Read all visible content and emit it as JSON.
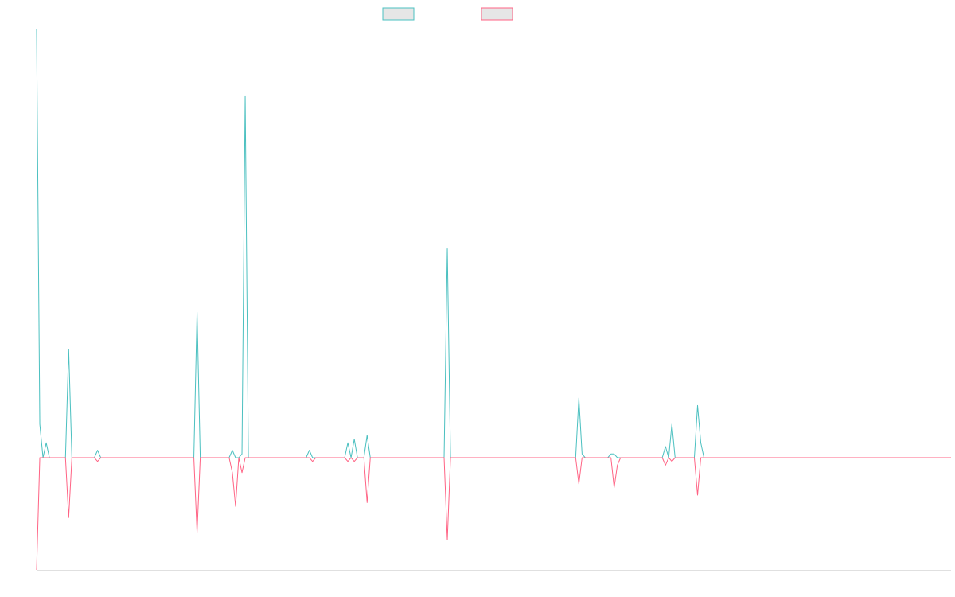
{
  "chart_data": {
    "type": "line",
    "title": "",
    "xlabel": "",
    "ylabel": "",
    "grid": false,
    "legend": {
      "position": "top-center",
      "entries": [
        {
          "color": "#4bc0c0"
        },
        {
          "color": "#ff6384"
        }
      ]
    },
    "ylim": [
      -0.3,
      1.15
    ],
    "x_count": 286,
    "series": [
      {
        "color": "#4bc0c0",
        "fill": "#e6e6e6",
        "points": [
          [
            0,
            1.15
          ],
          [
            1,
            0.09
          ],
          [
            2,
            0.0
          ],
          [
            3,
            0.04
          ],
          [
            4,
            0.0
          ],
          [
            5,
            0.0
          ],
          [
            9,
            0.0
          ],
          [
            10,
            0.29
          ],
          [
            11,
            0.0
          ],
          [
            18,
            0.0
          ],
          [
            19,
            0.02
          ],
          [
            20,
            0.0
          ],
          [
            49,
            0.0
          ],
          [
            50,
            0.39
          ],
          [
            51,
            0.0
          ],
          [
            60,
            0.0
          ],
          [
            61,
            0.02
          ],
          [
            62,
            0.0
          ],
          [
            63,
            0.0
          ],
          [
            64,
            0.01
          ],
          [
            65,
            0.97
          ],
          [
            66,
            0.0
          ],
          [
            84,
            0.0
          ],
          [
            85,
            0.02
          ],
          [
            86,
            0.0
          ],
          [
            96,
            0.0
          ],
          [
            97,
            0.04
          ],
          [
            98,
            0.0
          ],
          [
            99,
            0.05
          ],
          [
            100,
            0.0
          ],
          [
            102,
            0.0
          ],
          [
            103,
            0.06
          ],
          [
            104,
            0.0
          ],
          [
            127,
            0.0
          ],
          [
            128,
            0.56
          ],
          [
            129,
            0.0
          ],
          [
            168,
            0.0
          ],
          [
            169,
            0.16
          ],
          [
            170,
            0.01
          ],
          [
            171,
            0.0
          ],
          [
            178,
            0.0
          ],
          [
            179,
            0.01
          ],
          [
            180,
            0.01
          ],
          [
            181,
            0.0
          ],
          [
            195,
            0.0
          ],
          [
            196,
            0.03
          ],
          [
            197,
            0.0
          ],
          [
            198,
            0.09
          ],
          [
            199,
            0.0
          ],
          [
            205,
            0.0
          ],
          [
            206,
            0.14
          ],
          [
            207,
            0.04
          ],
          [
            208,
            0.0
          ],
          [
            285,
            0.0
          ]
        ]
      },
      {
        "color": "#ff6384",
        "fill": "#e6e6e6",
        "points": [
          [
            0,
            -0.3
          ],
          [
            1,
            0.0
          ],
          [
            2,
            0.0
          ],
          [
            9,
            0.0
          ],
          [
            10,
            -0.16
          ],
          [
            11,
            0.0
          ],
          [
            18,
            0.0
          ],
          [
            19,
            -0.01
          ],
          [
            20,
            0.0
          ],
          [
            49,
            0.0
          ],
          [
            50,
            -0.2
          ],
          [
            51,
            0.0
          ],
          [
            60,
            0.0
          ],
          [
            61,
            -0.04
          ],
          [
            62,
            -0.13
          ],
          [
            63,
            0.0
          ],
          [
            64,
            -0.04
          ],
          [
            65,
            0.0
          ],
          [
            85,
            0.0
          ],
          [
            86,
            -0.01
          ],
          [
            87,
            0.0
          ],
          [
            96,
            0.0
          ],
          [
            97,
            -0.01
          ],
          [
            98,
            0.0
          ],
          [
            99,
            -0.01
          ],
          [
            100,
            0.0
          ],
          [
            102,
            0.0
          ],
          [
            103,
            -0.12
          ],
          [
            104,
            0.0
          ],
          [
            127,
            0.0
          ],
          [
            128,
            -0.22
          ],
          [
            129,
            0.0
          ],
          [
            168,
            0.0
          ],
          [
            169,
            -0.07
          ],
          [
            170,
            0.0
          ],
          [
            179,
            0.0
          ],
          [
            180,
            -0.08
          ],
          [
            181,
            -0.02
          ],
          [
            182,
            0.0
          ],
          [
            195,
            0.0
          ],
          [
            196,
            -0.02
          ],
          [
            197,
            0.0
          ],
          [
            198,
            -0.01
          ],
          [
            199,
            0.0
          ],
          [
            205,
            0.0
          ],
          [
            206,
            -0.1
          ],
          [
            207,
            0.0
          ],
          [
            285,
            0.0
          ]
        ]
      }
    ]
  }
}
